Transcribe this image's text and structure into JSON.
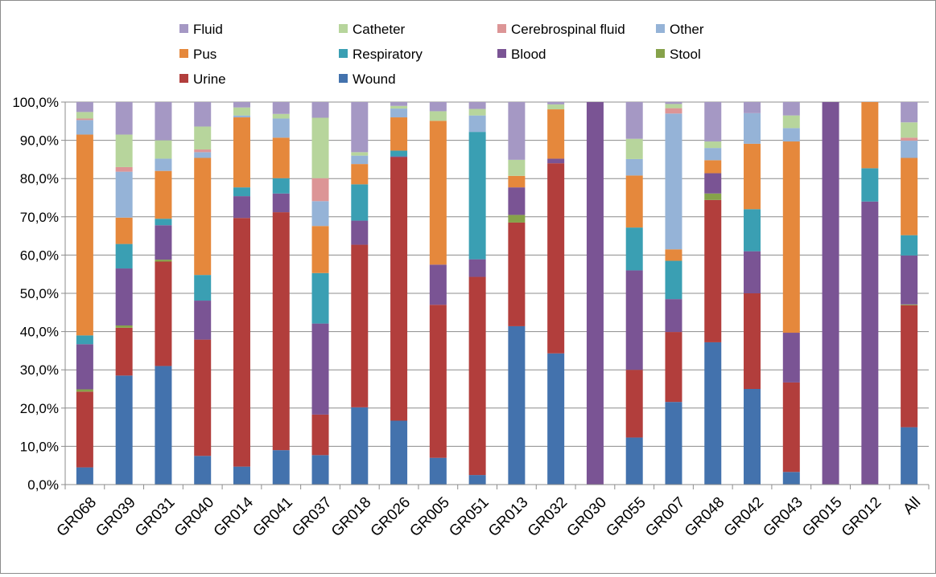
{
  "chart_data": {
    "type": "bar",
    "stacked": true,
    "percent": true,
    "ylim": [
      0,
      100
    ],
    "yticks": [
      "0,0%",
      "10,0%",
      "20,0%",
      "30,0%",
      "40,0%",
      "50,0%",
      "60,0%",
      "70,0%",
      "80,0%",
      "90,0%",
      "100,0%"
    ],
    "grid": true,
    "legend_position": "top",
    "legend": [
      {
        "name": "Fluid",
        "color": "#a598c4"
      },
      {
        "name": "Catheter",
        "color": "#b7d59c"
      },
      {
        "name": "Cerebrospinal fluid",
        "color": "#dc9596"
      },
      {
        "name": "Other",
        "color": "#95b3d7"
      },
      {
        "name": "Pus",
        "color": "#e5883c"
      },
      {
        "name": "Respiratory",
        "color": "#3a9fb3"
      },
      {
        "name": "Blood",
        "color": "#7a5494"
      },
      {
        "name": "Stool",
        "color": "#86a24a"
      },
      {
        "name": "Urine",
        "color": "#b23e3c"
      },
      {
        "name": "Wound",
        "color": "#4372ad"
      }
    ],
    "categories": [
      "GR068",
      "GR039",
      "GR031",
      "GR040",
      "GR014",
      "GR041",
      "GR037",
      "GR018",
      "GR026",
      "GR005",
      "GR051",
      "GR013",
      "GR032",
      "GR030",
      "GR055",
      "GR007",
      "GR048",
      "GR042",
      "GR043",
      "GR015",
      "GR012",
      "All"
    ],
    "series": [
      {
        "name": "Wound",
        "color": "#4372ad",
        "values": [
          4.5,
          28.5,
          31,
          7.5,
          4.7,
          9,
          7.7,
          20.2,
          16.7,
          7,
          2.5,
          41.4,
          34.3,
          0,
          12.3,
          21.6,
          37.2,
          25,
          3.3,
          0,
          0,
          15
        ]
      },
      {
        "name": "Urine",
        "color": "#b23e3c",
        "values": [
          19.8,
          12.5,
          27.3,
          30.4,
          65,
          62.2,
          10.6,
          42.5,
          68.9,
          40,
          51.8,
          27.1,
          49.7,
          0,
          17.7,
          18.3,
          37.2,
          25,
          23.4,
          0,
          0,
          31.9
        ]
      },
      {
        "name": "Stool",
        "color": "#86a24a",
        "values": [
          0.6,
          0.6,
          0.5,
          0,
          0,
          0,
          0,
          0,
          0,
          0,
          0,
          2,
          0,
          0,
          0,
          0,
          1.7,
          0,
          0,
          0,
          0,
          0.2
        ]
      },
      {
        "name": "Blood",
        "color": "#7a5494",
        "values": [
          11.8,
          14.9,
          9,
          10.2,
          5.7,
          4.9,
          23.8,
          6.3,
          0.2,
          10.5,
          4.6,
          7.2,
          1.2,
          100,
          26,
          8.6,
          5.3,
          11,
          13,
          100,
          74,
          12.8
        ]
      },
      {
        "name": "Respiratory",
        "color": "#3a9fb3",
        "values": [
          2.3,
          6.4,
          1.7,
          6.7,
          2.3,
          4,
          13.2,
          9.5,
          1.5,
          0,
          33.3,
          0,
          0,
          0,
          11.2,
          10,
          0,
          11,
          0,
          0,
          8.7,
          5.3
        ]
      },
      {
        "name": "Pus",
        "color": "#e5883c",
        "values": [
          52.5,
          6.9,
          12.5,
          30.6,
          18.3,
          10.6,
          12.3,
          5.3,
          8.7,
          37.6,
          0,
          3,
          12.9,
          0,
          13.6,
          3,
          3.4,
          17.1,
          50,
          0,
          17.3,
          20.2
        ]
      },
      {
        "name": "Other",
        "color": "#95b3d7",
        "values": [
          3.8,
          12,
          3.2,
          1.5,
          0.5,
          5,
          6.5,
          2.2,
          2.3,
          0,
          4.3,
          0,
          0,
          0,
          4.3,
          35.5,
          3.2,
          8,
          3.5,
          0,
          0,
          4.5
        ]
      },
      {
        "name": "Cerebrospinal fluid",
        "color": "#dc9596",
        "values": [
          0.4,
          1.2,
          0,
          0.7,
          0,
          0,
          6,
          0,
          0,
          0,
          0,
          0,
          0,
          0,
          0,
          1.4,
          0,
          0,
          0,
          0,
          0,
          0.8
        ]
      },
      {
        "name": "Catheter",
        "color": "#b7d59c",
        "values": [
          1.7,
          8.5,
          4.8,
          6,
          2.1,
          1.2,
          15.8,
          0.9,
          0.7,
          2.5,
          1.7,
          4.2,
          1.3,
          0,
          5.3,
          1.1,
          1.7,
          0,
          3.3,
          0,
          0,
          4
        ]
      },
      {
        "name": "Fluid",
        "color": "#a598c4",
        "values": [
          2.6,
          8.5,
          10,
          6.4,
          1.4,
          3.1,
          4.1,
          13.1,
          1,
          2.4,
          1.8,
          15.1,
          0.6,
          0,
          9.6,
          0.5,
          10.3,
          2.9,
          3.5,
          0,
          0,
          5.3
        ]
      }
    ]
  }
}
